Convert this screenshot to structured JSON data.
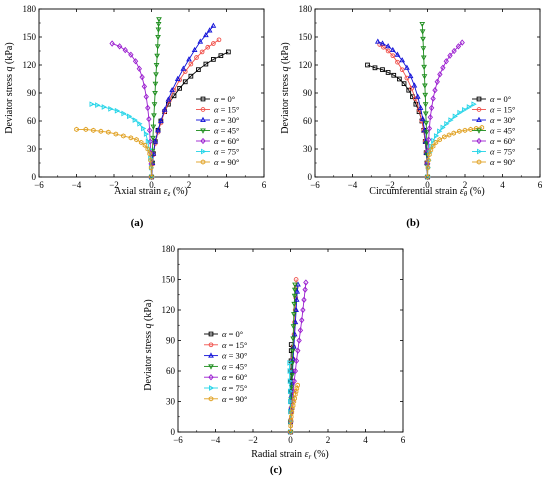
{
  "figure": {
    "panel_labels": [
      "(a)",
      "(b)",
      "(c)"
    ],
    "legend_prefix": "α = ",
    "series_labels": [
      "0°",
      "15°",
      "30°",
      "45°",
      "60°",
      "75°",
      "90°"
    ],
    "series_colors": [
      "#000000",
      "#f0504a",
      "#1010d8",
      "#1a8c1a",
      "#9b1fd0",
      "#22d4e8",
      "#e0a020"
    ],
    "series_markers": [
      "square",
      "circle",
      "triangle-up",
      "triangle-down",
      "diamond",
      "triangle-right",
      "hexagon"
    ]
  },
  "chart_data": [
    {
      "type": "line",
      "panel": "(a)",
      "xlabel": "Axial strain εz (%)",
      "ylabel": "Deviator stress q (kPa)",
      "xlim": [
        -6,
        6
      ],
      "ylim": [
        0,
        180
      ],
      "xticks": [
        -6,
        -4,
        -2,
        0,
        2,
        4,
        6
      ],
      "yticks": [
        0,
        30,
        60,
        90,
        120,
        150,
        180
      ],
      "legend_position": "right",
      "series": [
        {
          "name": "α = 0°",
          "x": [
            0,
            0.05,
            0.1,
            0.2,
            0.35,
            0.5,
            0.7,
            0.9,
            1.2,
            1.5,
            1.8,
            2.1,
            2.5,
            2.9,
            3.3,
            3.7,
            4.1
          ],
          "y": [
            0,
            15,
            25,
            38,
            50,
            60,
            70,
            78,
            87,
            95,
            102,
            108,
            115,
            121,
            126,
            130,
            134
          ]
        },
        {
          "name": "α = 15°",
          "x": [
            0,
            0.05,
            0.1,
            0.2,
            0.35,
            0.5,
            0.7,
            0.95,
            1.2,
            1.5,
            1.8,
            2.1,
            2.4,
            2.7,
            3.0,
            3.3,
            3.6
          ],
          "y": [
            0,
            14,
            24,
            36,
            48,
            58,
            70,
            82,
            93,
            104,
            113,
            121,
            128,
            134,
            139,
            143,
            147
          ]
        },
        {
          "name": "α = 30°",
          "x": [
            0,
            0.05,
            0.1,
            0.2,
            0.35,
            0.5,
            0.7,
            0.9,
            1.1,
            1.4,
            1.7,
            2.0,
            2.3,
            2.6,
            2.9,
            3.1,
            3.3
          ],
          "y": [
            0,
            15,
            25,
            38,
            50,
            60,
            72,
            83,
            93,
            105,
            116,
            126,
            136,
            145,
            152,
            157,
            162
          ]
        },
        {
          "name": "α = 45°",
          "x": [
            0,
            0.02,
            0.05,
            0.08,
            0.1,
            0.13,
            0.16,
            0.19,
            0.21,
            0.24,
            0.27,
            0.3,
            0.33,
            0.35,
            0.37,
            0.38,
            0.4
          ],
          "y": [
            0,
            14,
            28,
            42,
            54,
            66,
            78,
            90,
            100,
            110,
            120,
            130,
            140,
            150,
            158,
            164,
            169
          ]
        },
        {
          "name": "α = 60°",
          "x": [
            0,
            -0.02,
            -0.04,
            -0.07,
            -0.1,
            -0.14,
            -0.2,
            -0.28,
            -0.38,
            -0.5,
            -0.65,
            -0.85,
            -1.1,
            -1.4,
            -1.7,
            -2.1
          ],
          "y": [
            0,
            14,
            26,
            38,
            50,
            62,
            74,
            86,
            97,
            107,
            116,
            124,
            131,
            136,
            140,
            143
          ]
        },
        {
          "name": "α = 75°",
          "x": [
            0,
            -0.03,
            -0.07,
            -0.12,
            -0.2,
            -0.3,
            -0.45,
            -0.65,
            -0.9,
            -1.2,
            -1.5,
            -1.85,
            -2.2,
            -2.55,
            -2.9,
            -3.2
          ],
          "y": [
            0,
            10,
            20,
            30,
            38,
            46,
            52,
            57,
            61,
            65,
            68,
            71,
            73,
            75,
            77,
            78
          ]
        },
        {
          "name": "α = 90°",
          "x": [
            0,
            -0.02,
            -0.05,
            -0.1,
            -0.2,
            -0.35,
            -0.55,
            -0.8,
            -1.1,
            -1.5,
            -1.9,
            -2.3,
            -2.7,
            -3.1,
            -3.5,
            -4.0
          ],
          "y": [
            0,
            10,
            18,
            25,
            30,
            34,
            37,
            40,
            42,
            44,
            46,
            48,
            49,
            50,
            51,
            51
          ]
        }
      ]
    },
    {
      "type": "line",
      "panel": "(b)",
      "xlabel": "Circumferential strain εθ (%)",
      "ylabel": "Deviator stress q (kPa)",
      "xlim": [
        -6,
        6
      ],
      "ylim": [
        0,
        180
      ],
      "xticks": [
        -6,
        -4,
        -2,
        0,
        2,
        4,
        6
      ],
      "yticks": [
        0,
        30,
        60,
        90,
        120,
        150,
        180
      ],
      "legend_position": "right",
      "series": [
        {
          "name": "α = 0°",
          "x": [
            0,
            -0.03,
            -0.07,
            -0.12,
            -0.2,
            -0.3,
            -0.45,
            -0.62,
            -0.8,
            -1.0,
            -1.25,
            -1.5,
            -1.8,
            -2.1,
            -2.4,
            -2.8,
            -3.2
          ],
          "y": [
            0,
            15,
            26,
            38,
            50,
            60,
            70,
            78,
            86,
            93,
            100,
            105,
            109,
            112,
            115,
            117,
            120
          ]
        },
        {
          "name": "α = 15°",
          "x": [
            0,
            -0.03,
            -0.07,
            -0.12,
            -0.2,
            -0.3,
            -0.45,
            -0.65,
            -0.85,
            -1.1,
            -1.35,
            -1.6,
            -1.85,
            -2.1,
            -2.35,
            -2.55
          ],
          "y": [
            0,
            15,
            26,
            38,
            50,
            60,
            72,
            84,
            95,
            106,
            115,
            123,
            130,
            135,
            139,
            142
          ]
        },
        {
          "name": "α = 30°",
          "x": [
            0,
            -0.03,
            -0.06,
            -0.1,
            -0.16,
            -0.25,
            -0.37,
            -0.52,
            -0.7,
            -0.9,
            -1.1,
            -1.35,
            -1.6,
            -1.85,
            -2.1,
            -2.4,
            -2.65
          ],
          "y": [
            0,
            15,
            26,
            38,
            50,
            62,
            74,
            86,
            98,
            108,
            117,
            125,
            131,
            136,
            140,
            143,
            145
          ]
        },
        {
          "name": "α = 45°",
          "x": [
            0,
            -0.01,
            -0.02,
            -0.04,
            -0.05,
            -0.07,
            -0.09,
            -0.1,
            -0.12,
            -0.14,
            -0.16,
            -0.18,
            -0.2,
            -0.22,
            -0.24,
            -0.26,
            -0.28
          ],
          "y": [
            0,
            12,
            24,
            36,
            48,
            58,
            68,
            78,
            88,
            98,
            108,
            118,
            128,
            138,
            148,
            156,
            164
          ]
        },
        {
          "name": "α = 60°",
          "x": [
            0,
            0.01,
            0.03,
            0.06,
            0.1,
            0.15,
            0.22,
            0.3,
            0.4,
            0.52,
            0.66,
            0.82,
            1.0,
            1.2,
            1.42,
            1.65,
            1.85
          ],
          "y": [
            0,
            14,
            28,
            40,
            52,
            64,
            74,
            84,
            93,
            102,
            110,
            117,
            124,
            130,
            135,
            140,
            144
          ]
        },
        {
          "name": "α = 75°",
          "x": [
            0,
            0.02,
            0.05,
            0.1,
            0.18,
            0.3,
            0.45,
            0.62,
            0.8,
            1.0,
            1.22,
            1.45,
            1.7,
            1.95,
            2.2,
            2.45
          ],
          "y": [
            0,
            10,
            18,
            26,
            33,
            39,
            44,
            49,
            53,
            57,
            61,
            65,
            69,
            72,
            75,
            78
          ]
        },
        {
          "name": "α = 90°",
          "x": [
            0,
            0.02,
            0.05,
            0.1,
            0.18,
            0.3,
            0.45,
            0.65,
            0.9,
            1.15,
            1.4,
            1.7,
            2.0,
            2.3,
            2.6,
            2.9
          ],
          "y": [
            0,
            10,
            18,
            24,
            29,
            33,
            37,
            40,
            43,
            45,
            47,
            49,
            50,
            51,
            52,
            53
          ]
        }
      ]
    },
    {
      "type": "line",
      "panel": "(c)",
      "xlabel": "Radial strain εr (%)",
      "ylabel": "Deviator stress q (kPa)",
      "xlim": [
        -6,
        6
      ],
      "ylim": [
        0,
        180
      ],
      "xticks": [
        -6,
        -4,
        -2,
        0,
        2,
        4,
        6
      ],
      "yticks": [
        0,
        30,
        60,
        90,
        120,
        150,
        180
      ],
      "legend_position": "left",
      "series": [
        {
          "name": "α = 0°",
          "x": [
            0,
            0,
            0.01,
            0.01,
            0.02,
            0.02,
            0.03,
            0.03,
            0.04,
            0.04
          ],
          "y": [
            0,
            10,
            20,
            30,
            40,
            50,
            60,
            70,
            80,
            86
          ]
        },
        {
          "name": "α = 15°",
          "x": [
            0,
            0.01,
            0.03,
            0.05,
            0.08,
            0.1,
            0.13,
            0.16,
            0.19,
            0.22,
            0.25,
            0.28,
            0.3,
            0.3
          ],
          "y": [
            0,
            12,
            24,
            36,
            48,
            60,
            72,
            84,
            96,
            108,
            120,
            132,
            142,
            150
          ]
        },
        {
          "name": "α = 30°",
          "x": [
            0,
            0.01,
            0.03,
            0.05,
            0.08,
            0.11,
            0.14,
            0.18,
            0.22,
            0.26,
            0.3,
            0.33,
            0.36,
            0.4
          ],
          "y": [
            0,
            12,
            24,
            36,
            48,
            60,
            72,
            84,
            96,
            108,
            120,
            130,
            138,
            145
          ]
        },
        {
          "name": "α = 45°",
          "x": [
            0,
            0.01,
            0.02,
            0.04,
            0.06,
            0.08,
            0.1,
            0.12,
            0.14,
            0.16,
            0.18,
            0.2,
            0.22,
            0.23,
            0.24
          ],
          "y": [
            0,
            10,
            20,
            32,
            44,
            56,
            68,
            80,
            92,
            104,
            116,
            126,
            134,
            140,
            145
          ]
        },
        {
          "name": "α = 60°",
          "x": [
            0,
            0.03,
            0.06,
            0.1,
            0.15,
            0.2,
            0.26,
            0.32,
            0.39,
            0.46,
            0.53,
            0.6,
            0.66,
            0.72,
            0.78,
            0.82
          ],
          "y": [
            0,
            10,
            20,
            30,
            40,
            50,
            60,
            70,
            80,
            90,
            100,
            110,
            120,
            130,
            140,
            147
          ]
        },
        {
          "name": "α = 75°",
          "x": [
            0,
            0,
            -0.01,
            -0.02,
            -0.03,
            -0.04,
            -0.05,
            -0.06
          ],
          "y": [
            0,
            10,
            20,
            30,
            40,
            50,
            60,
            68
          ]
        },
        {
          "name": "α = 90°",
          "x": [
            0,
            0.01,
            0.02,
            0.04,
            0.07,
            0.1,
            0.14,
            0.18,
            0.22,
            0.26,
            0.3,
            0.34,
            0.38
          ],
          "y": [
            0,
            6,
            11,
            15,
            19,
            23,
            26,
            30,
            33,
            37,
            40,
            43,
            46
          ]
        }
      ]
    }
  ]
}
